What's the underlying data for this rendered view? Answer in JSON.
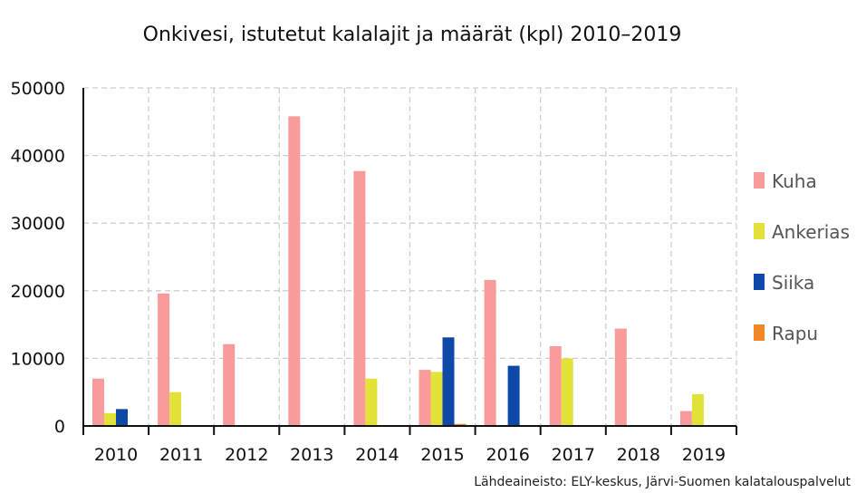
{
  "chart_data": {
    "type": "bar",
    "title": "Onkivesi, istutetut kalalajit ja määrät (kpl) 2010–2019",
    "xlabel": "",
    "ylabel": "",
    "ylim": [
      0,
      50000
    ],
    "yticks": [
      0,
      10000,
      20000,
      30000,
      40000,
      50000
    ],
    "grid": true,
    "legend_position": "right",
    "categories": [
      "2010",
      "2011",
      "2012",
      "2013",
      "2014",
      "2015",
      "2016",
      "2017",
      "2018",
      "2019"
    ],
    "series": [
      {
        "name": "Kuha",
        "color": "#f99b9b",
        "values": [
          7000,
          19600,
          12100,
          45800,
          37700,
          8300,
          21600,
          11800,
          14400,
          2200
        ]
      },
      {
        "name": "Ankerias",
        "color": "#e3e238",
        "values": [
          1900,
          5000,
          0,
          0,
          7000,
          8000,
          0,
          10000,
          0,
          4700
        ]
      },
      {
        "name": "Siika",
        "color": "#0e48a8",
        "values": [
          2500,
          0,
          0,
          0,
          0,
          13100,
          8900,
          0,
          0,
          0
        ]
      },
      {
        "name": "Rapu",
        "color": "#f0882a",
        "values": [
          0,
          0,
          0,
          0,
          0,
          300,
          0,
          0,
          0,
          0
        ]
      }
    ]
  },
  "source_note": "Lähdeaineisto: ELY-keskus, Järvi-Suomen kalatalouspalvelut"
}
